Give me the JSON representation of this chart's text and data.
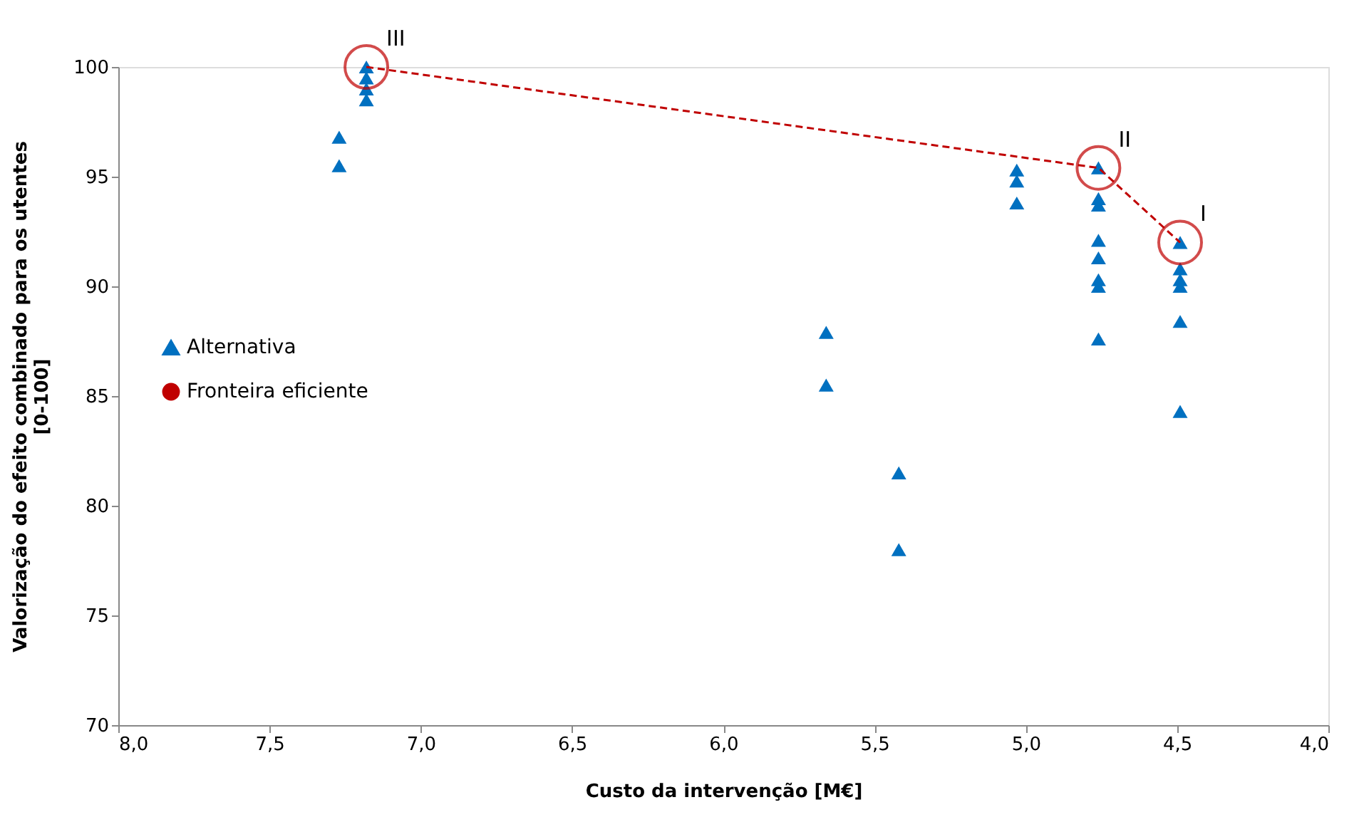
{
  "chart_data": {
    "type": "scatter",
    "xlabel": "Custo da intervenção [M€]",
    "ylabel": "Valorização do efeito combinado para os utentes\n[0-100]",
    "xlim": [
      8,
      4
    ],
    "xticks": [
      {
        "value": 8,
        "label": "8,0"
      },
      {
        "value": 7.5,
        "label": "7,5"
      },
      {
        "value": 7,
        "label": "7,0"
      },
      {
        "value": 6.5,
        "label": "6,5"
      },
      {
        "value": 6,
        "label": "6,0"
      },
      {
        "value": 5.5,
        "label": "5,5"
      },
      {
        "value": 5,
        "label": "5,0"
      },
      {
        "value": 4.5,
        "label": "4,5"
      },
      {
        "value": 4,
        "label": "4,0"
      }
    ],
    "ylim": [
      70,
      100
    ],
    "yticks": [
      70,
      75,
      80,
      85,
      90,
      95,
      100
    ],
    "grid": false,
    "legend": "left",
    "series": [
      {
        "name": "Alternativa",
        "type": "scatter",
        "marker": "triangle",
        "color": "#0070c0",
        "x": [
          7.18,
          7.18,
          7.18,
          7.18,
          7.27,
          7.27,
          5.66,
          5.66,
          5.42,
          5.42,
          5.03,
          5.03,
          5.03,
          4.76,
          4.76,
          4.76,
          4.76,
          4.76,
          4.76,
          4.76,
          4.76,
          4.49,
          4.49,
          4.49,
          4.49,
          4.49,
          4.49
        ],
        "values": [
          100,
          99.5,
          99,
          98.5,
          96.8,
          95.5,
          87.9,
          85.5,
          81.5,
          78,
          95.3,
          94.8,
          93.8,
          95.4,
          94,
          93.7,
          92.1,
          91.3,
          90.3,
          90,
          87.6,
          92,
          90.8,
          90.3,
          90,
          88.4,
          84.3
        ]
      },
      {
        "name": "Fronteira eficiente",
        "type": "line",
        "marker": "circle",
        "line_style": "dashed",
        "color": "#c00000",
        "x": [
          7.18,
          4.76,
          4.49
        ],
        "values": [
          100,
          95.4,
          92
        ]
      }
    ],
    "annotations": [
      {
        "text": "III",
        "x": 7.18,
        "y": 100
      },
      {
        "text": "II",
        "x": 4.76,
        "y": 95.4
      },
      {
        "text": "I",
        "x": 4.49,
        "y": 92
      }
    ]
  }
}
